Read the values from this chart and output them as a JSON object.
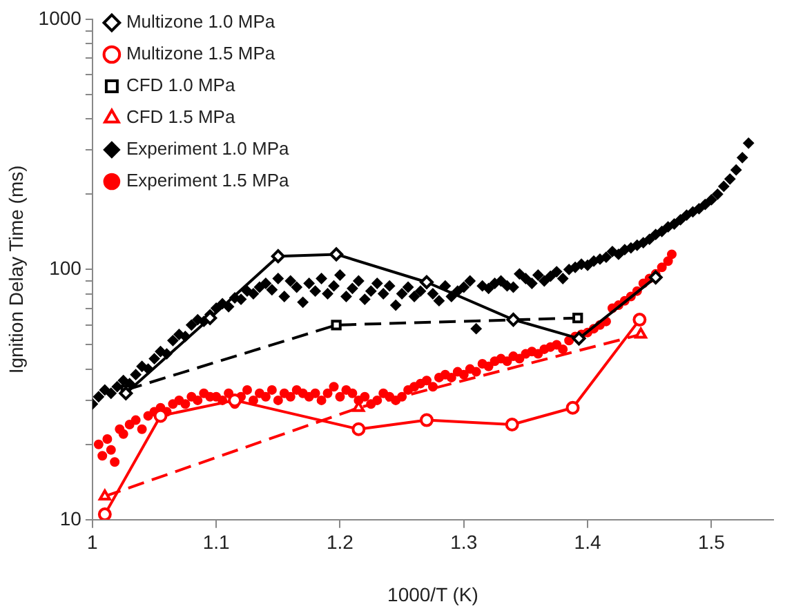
{
  "chart_data": {
    "type": "scatter",
    "xlabel": "1000/T (K)",
    "ylabel": "Ignition Delay Time (ms)",
    "log": "y",
    "grid": false,
    "legend": "top left",
    "xlim": [
      1,
      1.55
    ],
    "xticks": [
      {
        "value": 1,
        "label": "1"
      },
      1.1,
      1.2,
      1.3,
      1.4,
      1.5
    ],
    "ylim": [
      10,
      1000
    ],
    "yticks": [
      10,
      {
        "value": 20,
        "label": null
      },
      {
        "value": 30,
        "label": null
      },
      {
        "value": 40,
        "label": null
      },
      {
        "value": 50,
        "label": null
      },
      {
        "value": 60,
        "label": null
      },
      {
        "value": 70,
        "label": null
      },
      {
        "value": 80,
        "label": null
      },
      {
        "value": 90,
        "label": null
      },
      100,
      {
        "value": 200,
        "label": null
      },
      {
        "value": 300,
        "label": null
      },
      {
        "value": 400,
        "label": null
      },
      {
        "value": 500,
        "label": null
      },
      {
        "value": 600,
        "label": null
      },
      {
        "value": 700,
        "label": null
      },
      {
        "value": 800,
        "label": null
      },
      {
        "value": 900,
        "label": null
      },
      1000
    ],
    "series": [
      {
        "name": "Experiment 1.0 MPa",
        "type": "scatter",
        "marker": "diamond",
        "color": "#000000",
        "x": [
          1.0,
          1.005,
          1.01,
          1.015,
          1.02,
          1.025,
          1.03,
          1.035,
          1.04,
          1.045,
          1.05,
          1.055,
          1.06,
          1.065,
          1.07,
          1.075,
          1.08,
          1.085,
          1.09,
          1.095,
          1.1,
          1.105,
          1.11,
          1.115,
          1.12,
          1.125,
          1.13,
          1.135,
          1.14,
          1.145,
          1.15,
          1.155,
          1.16,
          1.165,
          1.17,
          1.175,
          1.18,
          1.185,
          1.19,
          1.195,
          1.2,
          1.205,
          1.21,
          1.215,
          1.22,
          1.225,
          1.23,
          1.235,
          1.24,
          1.245,
          1.25,
          1.255,
          1.26,
          1.265,
          1.27,
          1.275,
          1.28,
          1.285,
          1.29,
          1.295,
          1.3,
          1.305,
          1.31,
          1.315,
          1.32,
          1.325,
          1.33,
          1.335,
          1.34,
          1.345,
          1.35,
          1.355,
          1.36,
          1.365,
          1.37,
          1.375,
          1.38,
          1.385,
          1.39,
          1.395,
          1.4,
          1.405,
          1.41,
          1.415,
          1.42,
          1.425,
          1.43,
          1.435,
          1.44,
          1.445,
          1.45,
          1.455,
          1.46,
          1.465,
          1.47,
          1.475,
          1.48,
          1.485,
          1.49,
          1.495,
          1.5,
          1.505,
          1.51,
          1.515,
          1.52,
          1.525,
          1.53
        ],
        "values": [
          29,
          31,
          33,
          32,
          34,
          36,
          35,
          38,
          41,
          40,
          44,
          47,
          46,
          52,
          55,
          54,
          60,
          63,
          62,
          66,
          70,
          73,
          71,
          77,
          76,
          82,
          80,
          85,
          88,
          83,
          92,
          78,
          90,
          85,
          74,
          88,
          82,
          92,
          80,
          86,
          95,
          78,
          84,
          90,
          76,
          82,
          88,
          80,
          86,
          72,
          80,
          85,
          78,
          82,
          88,
          80,
          75,
          86,
          78,
          82,
          85,
          90,
          58,
          86,
          84,
          88,
          90,
          86,
          85,
          96,
          92,
          88,
          95,
          90,
          94,
          98,
          92,
          100,
          102,
          105,
          104,
          108,
          110,
          112,
          118,
          115,
          120,
          122,
          125,
          128,
          132,
          138,
          142,
          148,
          152,
          158,
          165,
          170,
          175,
          182,
          190,
          200,
          215,
          230,
          250,
          280,
          320
        ]
      },
      {
        "name": "Experiment 1.5 MPa",
        "type": "scatter",
        "marker": "circle",
        "color": "#ff0000",
        "x": [
          1.005,
          1.008,
          1.012,
          1.015,
          1.018,
          1.022,
          1.025,
          1.03,
          1.035,
          1.04,
          1.045,
          1.05,
          1.055,
          1.06,
          1.065,
          1.07,
          1.075,
          1.08,
          1.085,
          1.09,
          1.095,
          1.1,
          1.105,
          1.11,
          1.115,
          1.12,
          1.125,
          1.13,
          1.135,
          1.14,
          1.145,
          1.15,
          1.155,
          1.16,
          1.165,
          1.17,
          1.175,
          1.18,
          1.185,
          1.19,
          1.195,
          1.2,
          1.205,
          1.21,
          1.215,
          1.22,
          1.225,
          1.23,
          1.235,
          1.24,
          1.245,
          1.25,
          1.255,
          1.26,
          1.265,
          1.27,
          1.275,
          1.28,
          1.285,
          1.29,
          1.295,
          1.3,
          1.305,
          1.31,
          1.315,
          1.32,
          1.325,
          1.33,
          1.335,
          1.34,
          1.345,
          1.35,
          1.355,
          1.36,
          1.365,
          1.37,
          1.375,
          1.38,
          1.385,
          1.39,
          1.395,
          1.4,
          1.405,
          1.41,
          1.415,
          1.42,
          1.425,
          1.43,
          1.435,
          1.44,
          1.445,
          1.45,
          1.455,
          1.46,
          1.465,
          1.468
        ],
        "values": [
          20,
          18,
          21,
          19,
          17,
          23,
          22,
          24,
          25,
          23,
          26,
          27,
          28,
          27,
          29,
          30,
          29,
          31,
          30,
          32,
          31,
          31,
          30,
          32,
          29,
          31,
          33,
          30,
          32,
          31,
          33,
          30,
          32,
          31,
          33,
          32,
          31,
          32,
          30,
          32,
          34,
          31,
          33,
          32,
          30,
          31,
          29,
          30,
          32,
          31,
          30,
          31,
          33,
          34,
          35,
          36,
          34,
          37,
          38,
          37,
          39,
          38,
          40,
          39,
          42,
          41,
          43,
          44,
          43,
          45,
          44,
          46,
          47,
          46,
          48,
          49,
          50,
          48,
          52,
          54,
          55,
          56,
          58,
          60,
          62,
          70,
          72,
          75,
          78,
          82,
          88,
          92,
          96,
          102,
          108,
          115
        ]
      },
      {
        "name": "Multizone 1.0 MPa",
        "type": "line",
        "marker": "diamond",
        "line_style": "solid",
        "color": "#000000",
        "x": [
          1.027,
          1.095,
          1.15,
          1.197,
          1.27,
          1.34,
          1.393,
          1.455
        ],
        "values": [
          32,
          64,
          113,
          115,
          89,
          63,
          53,
          93
        ]
      },
      {
        "name": "Multizone 1.5 MPa",
        "type": "line",
        "marker": "circle",
        "line_style": "solid",
        "color": "#ff0000",
        "x": [
          1.01,
          1.055,
          1.115,
          1.215,
          1.27,
          1.339,
          1.388,
          1.442
        ],
        "values": [
          10.5,
          26,
          30,
          23,
          25,
          24,
          28,
          63
        ]
      },
      {
        "name": "CFD 1.0 MPa",
        "type": "line",
        "marker": "square",
        "line_style": "dashed",
        "color": "#000000",
        "x": [
          1.027,
          1.197,
          1.392
        ],
        "values": [
          33,
          60,
          64
        ]
      },
      {
        "name": "CFD 1.5 MPa",
        "type": "line",
        "marker": "triangle",
        "line_style": "dashed",
        "color": "#ff0000",
        "x": [
          1.01,
          1.215,
          1.443
        ],
        "values": [
          12.4,
          28,
          55
        ]
      }
    ]
  }
}
